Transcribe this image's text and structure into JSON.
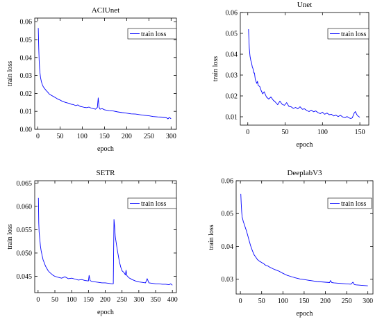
{
  "chart_data": [
    {
      "type": "line",
      "title": "ACIUnet",
      "xlabel": "epoch",
      "ylabel": "train loss",
      "xlim": [
        -7,
        312
      ],
      "ylim": [
        0.0,
        0.062
      ],
      "xticks": [
        0,
        50,
        100,
        150,
        200,
        250,
        300
      ],
      "yticks": [
        0.0,
        0.01,
        0.02,
        0.03,
        0.04,
        0.05,
        0.06
      ],
      "ytick_labels": [
        "0.00",
        "0.01",
        "0.02",
        "0.03",
        "0.04",
        "0.05",
        "0.06"
      ],
      "grid": false,
      "legend_position": "top-right",
      "series": [
        {
          "name": "train loss",
          "color": "#0000ff",
          "x": [
            1,
            2,
            3,
            4,
            5,
            6,
            8,
            10,
            12,
            15,
            18,
            22,
            26,
            30,
            35,
            40,
            45,
            50,
            55,
            60,
            65,
            70,
            75,
            80,
            85,
            90,
            95,
            100,
            105,
            110,
            115,
            120,
            125,
            130,
            134,
            136,
            138,
            140,
            145,
            150,
            160,
            170,
            180,
            190,
            200,
            210,
            220,
            230,
            240,
            250,
            260,
            270,
            280,
            290,
            293,
            296,
            300
          ],
          "y": [
            0.0565,
            0.045,
            0.038,
            0.034,
            0.031,
            0.029,
            0.0265,
            0.025,
            0.0238,
            0.0228,
            0.0218,
            0.0208,
            0.0196,
            0.019,
            0.0183,
            0.0176,
            0.0168,
            0.0163,
            0.0156,
            0.0152,
            0.0148,
            0.0145,
            0.014,
            0.0138,
            0.0132,
            0.0136,
            0.0128,
            0.0125,
            0.0122,
            0.0121,
            0.0124,
            0.0118,
            0.0115,
            0.0112,
            0.0122,
            0.0175,
            0.0122,
            0.0112,
            0.0115,
            0.0109,
            0.0104,
            0.0102,
            0.0097,
            0.0093,
            0.009,
            0.0086,
            0.0085,
            0.0081,
            0.0078,
            0.0075,
            0.0071,
            0.0069,
            0.0068,
            0.0064,
            0.0058,
            0.0066,
            0.0059
          ]
        }
      ]
    },
    {
      "type": "line",
      "title": "Unet",
      "xlabel": "epoch",
      "ylabel": "train loss",
      "xlim": [
        -10,
        162
      ],
      "ylim": [
        0.006,
        0.06
      ],
      "xticks": [
        0,
        50,
        100,
        150
      ],
      "yticks": [
        0.01,
        0.02,
        0.03,
        0.04,
        0.05,
        0.06
      ],
      "ytick_labels": [
        "0.01",
        "0.02",
        "0.03",
        "0.04",
        "0.05",
        "0.06"
      ],
      "grid": false,
      "legend_position": "top-right",
      "series": [
        {
          "name": "train loss",
          "color": "#0000ff",
          "x": [
            1,
            2,
            3,
            4,
            5,
            6,
            7,
            8,
            9,
            10,
            11,
            12,
            13,
            14,
            16,
            18,
            20,
            22,
            25,
            28,
            31,
            34,
            37,
            40,
            43,
            46,
            49,
            52,
            55,
            58,
            61,
            64,
            67,
            70,
            73,
            76,
            79,
            82,
            85,
            88,
            91,
            94,
            97,
            100,
            103,
            106,
            109,
            112,
            115,
            118,
            121,
            124,
            127,
            130,
            133,
            136,
            138,
            140,
            142,
            144,
            146,
            148,
            150
          ],
          "y": [
            0.052,
            0.043,
            0.039,
            0.037,
            0.036,
            0.034,
            0.033,
            0.031,
            0.031,
            0.028,
            0.027,
            0.026,
            0.027,
            0.025,
            0.0245,
            0.0225,
            0.021,
            0.022,
            0.0195,
            0.0185,
            0.0195,
            0.018,
            0.017,
            0.0158,
            0.0175,
            0.016,
            0.0155,
            0.0168,
            0.015,
            0.0148,
            0.014,
            0.0145,
            0.0138,
            0.0148,
            0.0136,
            0.0138,
            0.013,
            0.0125,
            0.0132,
            0.0124,
            0.0128,
            0.012,
            0.0115,
            0.0122,
            0.0112,
            0.0118,
            0.011,
            0.0112,
            0.0104,
            0.0108,
            0.0101,
            0.0107,
            0.0099,
            0.0096,
            0.0101,
            0.0094,
            0.0092,
            0.0095,
            0.0115,
            0.0125,
            0.011,
            0.0102,
            0.0098
          ]
        }
      ]
    },
    {
      "type": "line",
      "title": "SETR",
      "xlabel": "epoch",
      "ylabel": "train loss",
      "xlim": [
        -10,
        412
      ],
      "ylim": [
        0.0415,
        0.0655
      ],
      "xticks": [
        0,
        50,
        100,
        150,
        200,
        250,
        300,
        350,
        400
      ],
      "yticks": [
        0.045,
        0.05,
        0.055,
        0.06,
        0.065
      ],
      "ytick_labels": [
        "0.045",
        "0.050",
        "0.055",
        "0.060",
        "0.065"
      ],
      "grid": false,
      "legend_position": "top-right",
      "series": [
        {
          "name": "train loss",
          "color": "#0000ff",
          "x": [
            1,
            2,
            3,
            5,
            7,
            9,
            12,
            15,
            18,
            22,
            26,
            30,
            35,
            40,
            45,
            50,
            60,
            70,
            80,
            90,
            100,
            110,
            120,
            130,
            140,
            150,
            152,
            155,
            160,
            170,
            180,
            190,
            200,
            210,
            220,
            224,
            226,
            228,
            230,
            234,
            238,
            242,
            246,
            250,
            256,
            260,
            262,
            264,
            270,
            280,
            290,
            300,
            310,
            320,
            325,
            330,
            340,
            350,
            360,
            370,
            380,
            390,
            395,
            400
          ],
          "y": [
            0.0618,
            0.0565,
            0.0545,
            0.053,
            0.0515,
            0.0505,
            0.0495,
            0.0485,
            0.048,
            0.0472,
            0.0467,
            0.0462,
            0.0458,
            0.0455,
            0.0452,
            0.045,
            0.0448,
            0.0446,
            0.0449,
            0.0445,
            0.0446,
            0.0444,
            0.0442,
            0.0443,
            0.0441,
            0.044,
            0.0452,
            0.0441,
            0.0439,
            0.0438,
            0.0437,
            0.0436,
            0.0436,
            0.0435,
            0.0434,
            0.0434,
            0.0572,
            0.0555,
            0.0535,
            0.0515,
            0.0498,
            0.0482,
            0.047,
            0.0462,
            0.0458,
            0.0453,
            0.0463,
            0.0452,
            0.0447,
            0.0443,
            0.044,
            0.0438,
            0.0437,
            0.0436,
            0.0445,
            0.0436,
            0.0435,
            0.0434,
            0.0434,
            0.0433,
            0.0433,
            0.0432,
            0.0434,
            0.0431
          ]
        }
      ]
    },
    {
      "type": "line",
      "title": "DeeplabV3",
      "xlabel": "epoch",
      "ylabel": "train loss",
      "xlim": [
        -10,
        312
      ],
      "ylim": [
        0.0255,
        0.06
      ],
      "xticks": [
        0,
        50,
        100,
        150,
        200,
        250,
        300
      ],
      "yticks": [
        0.03,
        0.04,
        0.05,
        0.06
      ],
      "ytick_labels": [
        "0.03",
        "0.04",
        "0.05",
        "0.06"
      ],
      "grid": false,
      "legend_position": "top-right",
      "series": [
        {
          "name": "train loss",
          "color": "#0000ff",
          "x": [
            1,
            2,
            3,
            4,
            5,
            7,
            9,
            11,
            14,
            17,
            20,
            24,
            28,
            32,
            36,
            40,
            45,
            50,
            55,
            60,
            65,
            70,
            75,
            80,
            90,
            100,
            110,
            120,
            130,
            140,
            150,
            160,
            170,
            180,
            190,
            200,
            210,
            212,
            215,
            220,
            230,
            240,
            250,
            260,
            265,
            268,
            272,
            280,
            290,
            300
          ],
          "y": [
            0.056,
            0.053,
            0.0505,
            0.049,
            0.0485,
            0.0475,
            0.0468,
            0.046,
            0.0448,
            0.0435,
            0.042,
            0.0402,
            0.0388,
            0.0375,
            0.0368,
            0.036,
            0.0355,
            0.0351,
            0.0347,
            0.0342,
            0.034,
            0.0336,
            0.0333,
            0.033,
            0.0325,
            0.0318,
            0.0312,
            0.0308,
            0.0304,
            0.0301,
            0.0299,
            0.0297,
            0.0295,
            0.0293,
            0.0292,
            0.0291,
            0.029,
            0.0296,
            0.029,
            0.0289,
            0.0288,
            0.0287,
            0.0286,
            0.0285,
            0.0291,
            0.0284,
            0.0283,
            0.0282,
            0.0281,
            0.028
          ]
        }
      ]
    }
  ]
}
